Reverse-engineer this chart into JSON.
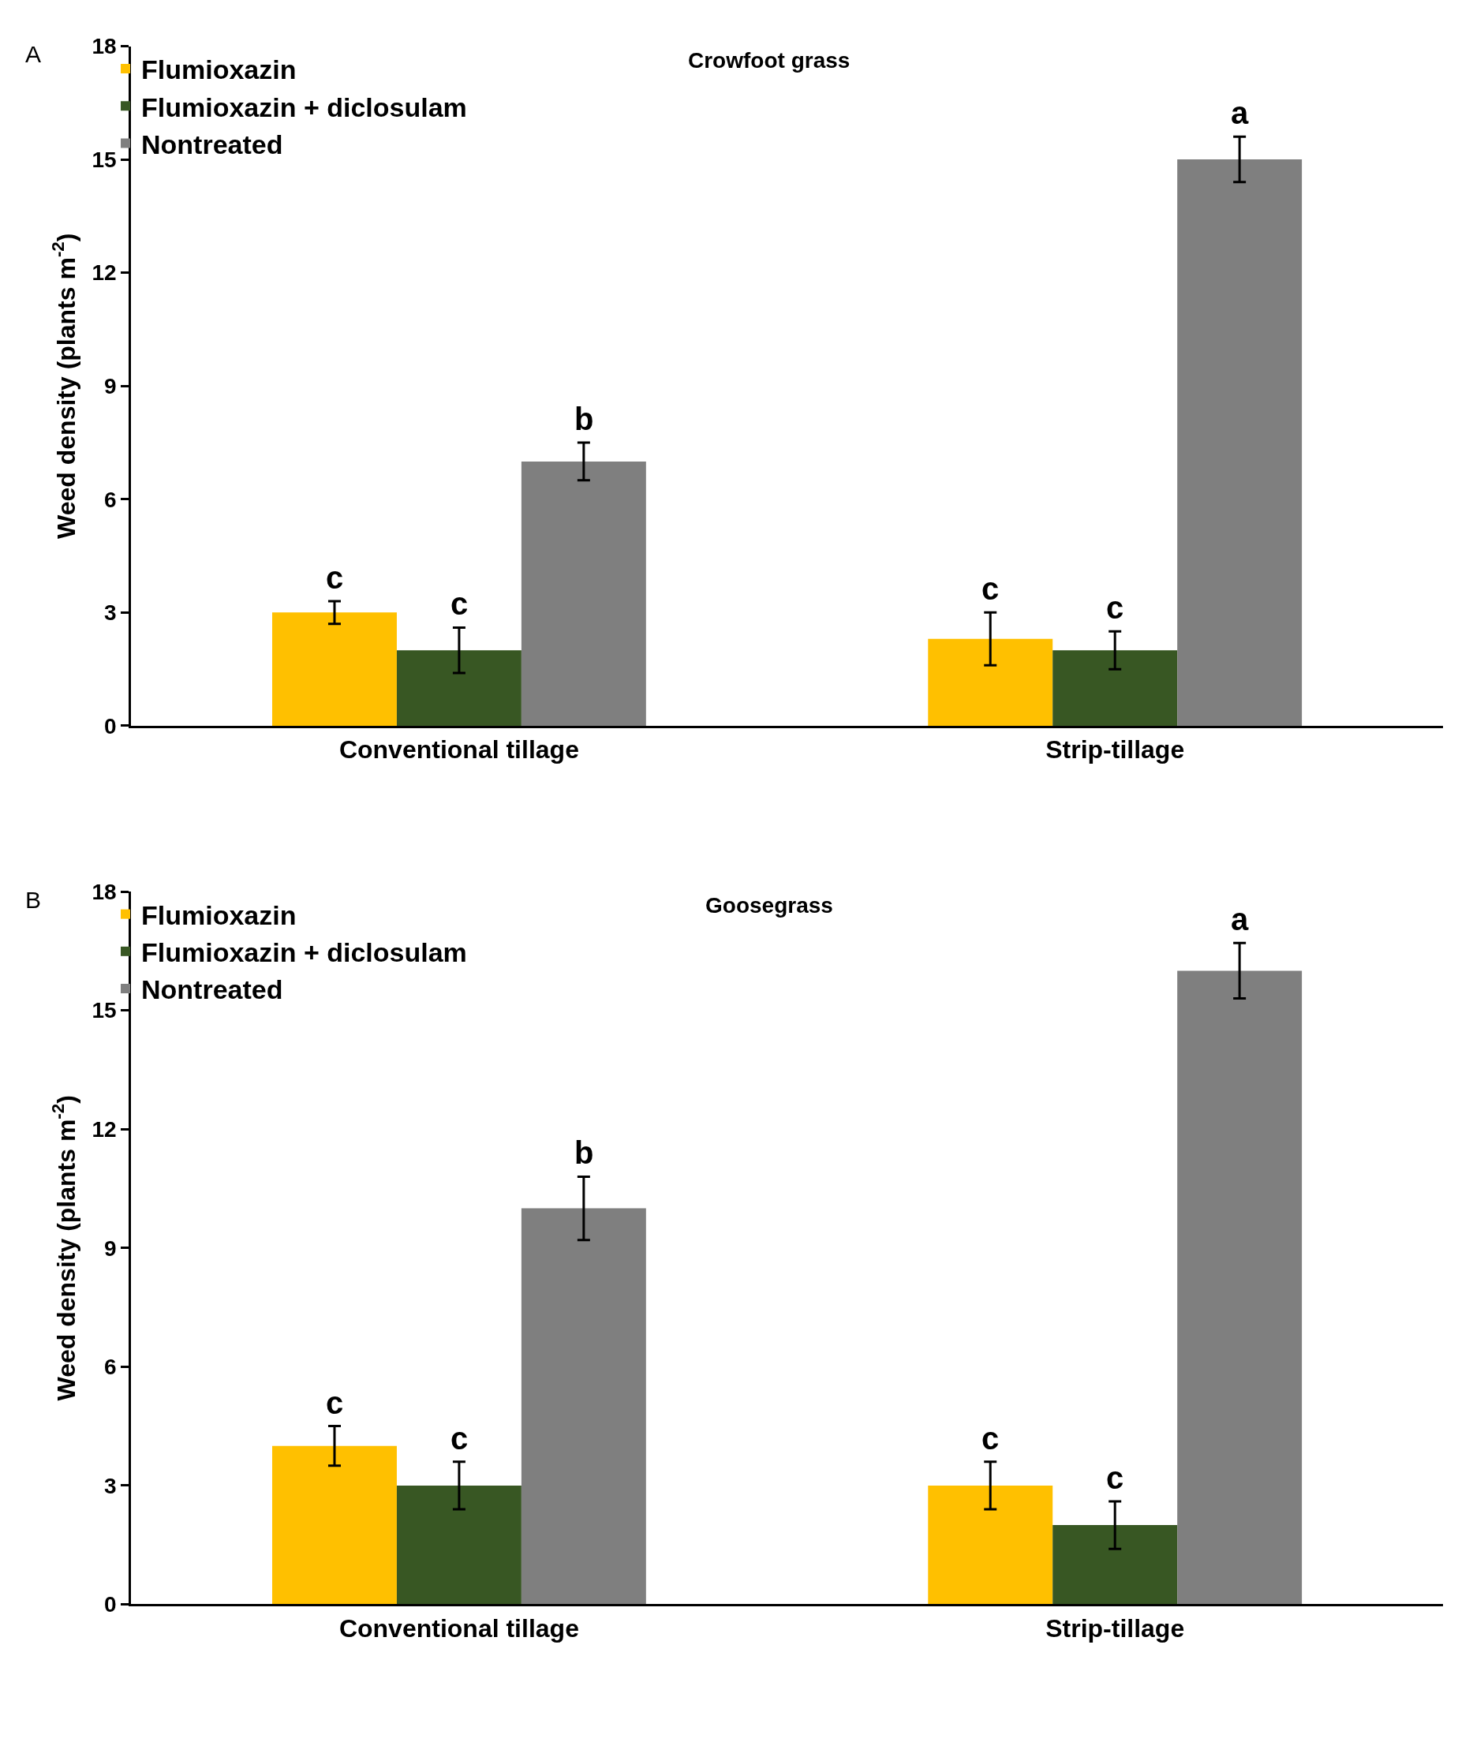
{
  "chart_data": [
    {
      "type": "bar",
      "title": "Crowfoot grass",
      "ylabel": "Weed density (plants m$^{-2}$)",
      "annotations": [
        "A"
      ],
      "categories": [
        "Conventional tillage",
        "Strip-tillage"
      ],
      "ylim": [
        0,
        18
      ],
      "yticks": [
        0,
        3,
        6,
        9,
        12,
        15,
        18
      ],
      "legend": "top left",
      "series": [
        {
          "name": "Flumioxazin",
          "color": "#ffc000",
          "values": [
            3.0,
            2.3
          ],
          "errors": [
            0.3,
            0.7
          ],
          "value_labels": [
            "c",
            "c"
          ]
        },
        {
          "name": "Flumioxazin + diclosulam",
          "color": "#385723",
          "values": [
            2.0,
            2.0
          ],
          "errors": [
            0.6,
            0.5
          ],
          "value_labels": [
            "c",
            "c"
          ]
        },
        {
          "name": "Nontreated",
          "color": "#7f7f7f",
          "values": [
            7.0,
            15.0
          ],
          "errors": [
            0.5,
            0.6
          ],
          "value_labels": [
            "b",
            "a"
          ]
        }
      ]
    },
    {
      "type": "bar",
      "title": "Goosegrass",
      "ylabel": "Weed density (plants m$^{-2}$)",
      "annotations": [
        "B"
      ],
      "categories": [
        "Conventional tillage",
        "Strip-tillage"
      ],
      "ylim": [
        0,
        18
      ],
      "yticks": [
        0,
        3,
        6,
        9,
        12,
        15,
        18
      ],
      "legend": "top left",
      "series": [
        {
          "name": "Flumioxazin",
          "color": "#ffc000",
          "values": [
            4.0,
            3.0
          ],
          "errors": [
            0.5,
            0.6
          ],
          "value_labels": [
            "c",
            "c"
          ]
        },
        {
          "name": "Flumioxazin + diclosulam",
          "color": "#385723",
          "values": [
            3.0,
            2.0
          ],
          "errors": [
            0.6,
            0.6
          ],
          "value_labels": [
            "c",
            "c"
          ]
        },
        {
          "name": "Nontreated",
          "color": "#7f7f7f",
          "values": [
            10.0,
            16.0
          ],
          "errors": [
            0.8,
            0.7
          ],
          "value_labels": [
            "b",
            "a"
          ]
        }
      ]
    }
  ]
}
